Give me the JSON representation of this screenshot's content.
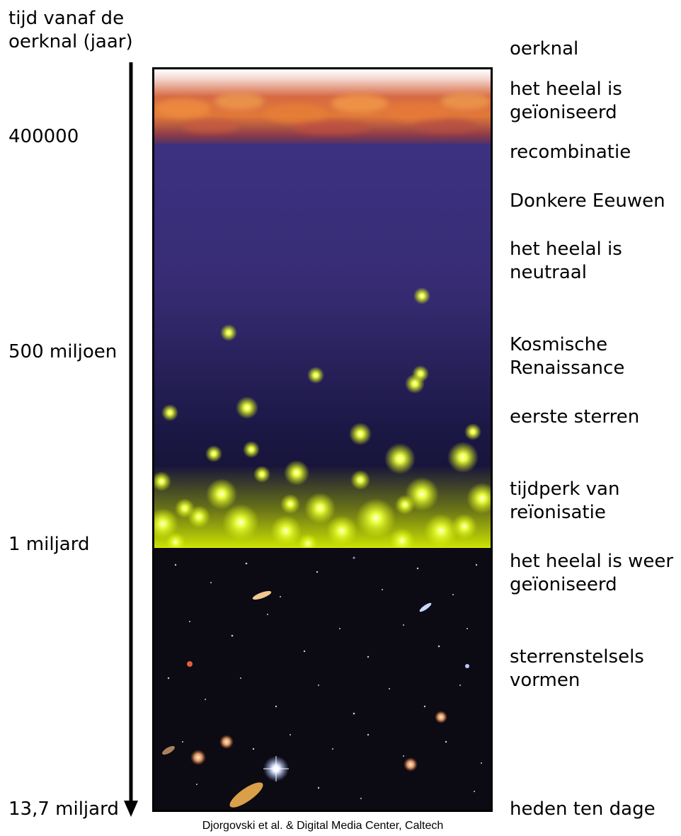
{
  "axis_title": "tijd vanaf de\noerknal (jaar)",
  "time_labels": [
    "400000",
    "500 miljoen",
    "1 miljard",
    "13,7 miljard"
  ],
  "events": [
    "oerknal",
    "het heelal is\ngeïoniseerd",
    "recombinatie",
    "Donkere Eeuwen",
    "het heelal is\nneutraal",
    "Kosmische\nRenaissance",
    "eerste sterren",
    "tijdperk van\nreïonisatie",
    "het heelal is weer\ngeïoniseerd",
    "sterrenstelsels\nvormen",
    "heden ten dage"
  ],
  "credit": "Djorgovski et al. & Digital Media Center, Caltech",
  "colors": {
    "ionized_glow": "#e0703a",
    "dark_ages": "#3a2f78",
    "reionization_glow": "#d7f000",
    "galaxy_field": "#0c0a12"
  }
}
